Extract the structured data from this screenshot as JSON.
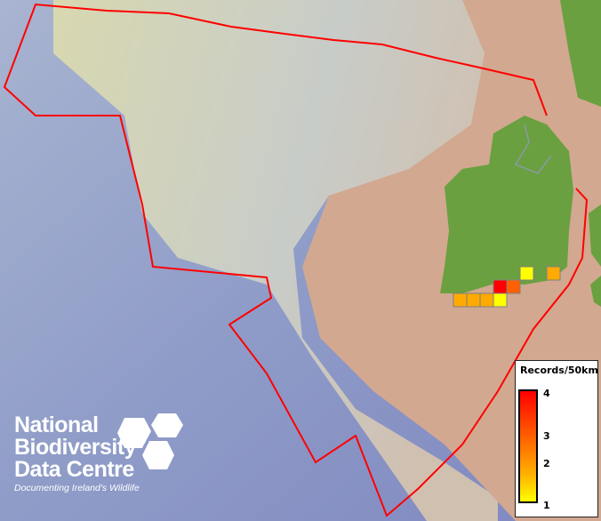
{
  "legend": {
    "title": "Records/50km",
    "ticks": [
      "4",
      "3",
      "2",
      "1"
    ],
    "range": [
      1,
      4
    ],
    "colors": {
      "low": "#ffff00",
      "high": "#ff0000"
    }
  },
  "logo": {
    "line1": "National",
    "line2": "Biodiversity",
    "line3": "Data Centre",
    "tagline": "Documenting Ireland's Wildlife"
  },
  "boundary_color": "#ff0000",
  "cells": [
    {
      "value": 1,
      "color": "#ffff00"
    },
    {
      "value": 2,
      "color": "#ffaa00"
    },
    {
      "value": 4,
      "color": "#ff0000"
    },
    {
      "value": 3,
      "color": "#ff6000"
    },
    {
      "value": 2,
      "color": "#ffaa00"
    },
    {
      "value": 2,
      "color": "#ffaa00"
    },
    {
      "value": 2,
      "color": "#ffaa00"
    },
    {
      "value": 1,
      "color": "#ffff00"
    }
  ]
}
